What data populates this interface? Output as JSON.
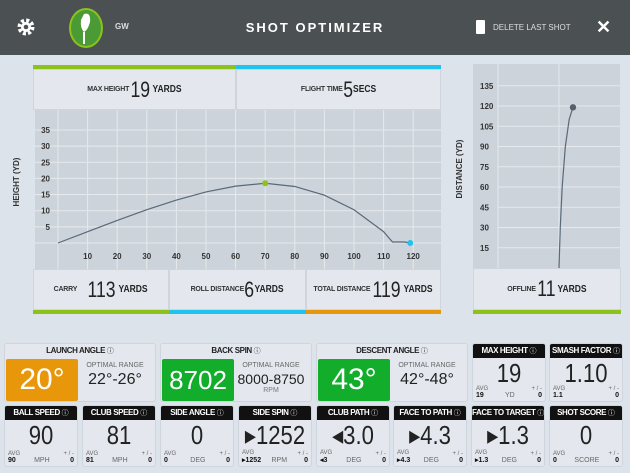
{
  "header": {
    "title": "SHOT OPTIMIZER",
    "club": "GW",
    "delete_label": "DELETE LAST SHOT",
    "icons": [
      "gear-icon",
      "club-avatar",
      "trash-icon",
      "close-icon"
    ]
  },
  "side_view": {
    "max_height": {
      "label": "MAX HEIGHT",
      "value": "19",
      "unit": "YARDS"
    },
    "flight_time": {
      "label": "FLIGHT TIME",
      "value": "5",
      "unit": "SECS"
    },
    "carry": {
      "label": "CARRY",
      "value": "113",
      "unit": "YARDS"
    },
    "roll": {
      "label": "ROLL DISTANCE",
      "value": "6",
      "unit": "YARDS"
    },
    "total": {
      "label": "TOTAL DISTANCE",
      "value": "119",
      "unit": "YARDS"
    }
  },
  "top_view": {
    "offline": {
      "label": "OFFLINE",
      "value": "11",
      "unit": "YARDS"
    }
  },
  "chart_data": [
    {
      "type": "line",
      "ylabel": "HEIGHT (YD)",
      "xlabel": "",
      "xlim": [
        0,
        130
      ],
      "ylim": [
        0,
        38
      ],
      "xticks": [
        10,
        20,
        30,
        40,
        50,
        60,
        70,
        80,
        90,
        100,
        110,
        120
      ],
      "yticks": [
        5,
        10,
        15,
        20,
        25,
        30,
        35
      ],
      "grid": true,
      "x": [
        0,
        10,
        20,
        30,
        40,
        50,
        60,
        70,
        80,
        90,
        100,
        110,
        113,
        117,
        119
      ],
      "y": [
        0,
        3.5,
        7,
        10.3,
        13.3,
        15.8,
        17.6,
        18.5,
        17.5,
        14.8,
        10.3,
        3.5,
        0.3,
        0.3,
        0
      ],
      "markers": [
        {
          "x": 70,
          "y": 18.5,
          "color": "#8cc21a"
        },
        {
          "x": 119,
          "y": 0,
          "color": "#1ec4f0"
        }
      ],
      "line_color": "#5a6878"
    },
    {
      "type": "line",
      "ylabel": "DISTANCE (YD)",
      "xlabel": "",
      "ylim": [
        0,
        145
      ],
      "yticks": [
        15,
        30,
        45,
        60,
        75,
        90,
        105,
        120,
        135
      ],
      "grid": true,
      "x": [
        0,
        1,
        2.5,
        5,
        8,
        11
      ],
      "y": [
        0,
        30,
        60,
        90,
        110,
        119
      ],
      "markers": [
        {
          "x": 11,
          "y": 119,
          "color": "#56606c"
        }
      ],
      "line_color": "#5a6878"
    }
  ],
  "metrics": {
    "launch_angle": {
      "label": "LAUNCH ANGLE",
      "value": "20°",
      "optimal_label": "OPTIMAL RANGE",
      "optimal": "22°-26°",
      "color": "#e8960a"
    },
    "back_spin": {
      "label": "BACK SPIN",
      "value": "8702",
      "optimal_label": "OPTIMAL RANGE",
      "optimal": "8000-8750",
      "unit": "RPM",
      "color": "#12ad2b"
    },
    "descent_angle": {
      "label": "DESCENT ANGLE",
      "value": "43°",
      "optimal_label": "OPTIMAL RANGE",
      "optimal": "42°-48°",
      "color": "#12ad2b"
    },
    "tiles": [
      {
        "label": "MAX HEIGHT",
        "value": "19",
        "avg": "19",
        "unit": "YD",
        "pm": "0"
      },
      {
        "label": "SMASH FACTOR",
        "value": "1.10",
        "avg": "1.1",
        "unit": "",
        "pm": "0"
      },
      {
        "label": "BALL SPEED",
        "value": "90",
        "avg": "90",
        "unit": "MPH",
        "pm": "0"
      },
      {
        "label": "CLUB SPEED",
        "value": "81",
        "avg": "81",
        "unit": "MPH",
        "pm": "0"
      },
      {
        "label": "SIDE ANGLE",
        "value": "0",
        "avg": "0",
        "unit": "DEG",
        "pm": "0"
      },
      {
        "label": "SIDE SPIN",
        "value": "▸1252",
        "avg": "▸1252",
        "unit": "RPM",
        "pm": "0"
      },
      {
        "label": "CLUB PATH",
        "value": "◂3.0",
        "avg": "◂3",
        "unit": "DEG",
        "pm": "0"
      },
      {
        "label": "FACE TO PATH",
        "value": "▸4.3",
        "avg": "▸4.3",
        "unit": "DEG",
        "pm": "0"
      },
      {
        "label": "FACE TO TARGET",
        "value": "▸1.3",
        "avg": "▸1.3",
        "unit": "DEG",
        "pm": "0"
      },
      {
        "label": "SHOT SCORE",
        "value": "0",
        "avg": "0",
        "unit": "SCORE",
        "pm": "0"
      }
    ],
    "avg_label": "AVG",
    "pm_label": "+ / -",
    "help_icon": "ⓘ"
  },
  "colors": {
    "green": "#8cc21a",
    "cyan": "#1ec4f0",
    "orange": "#e8960a",
    "header": "#4b5153"
  }
}
